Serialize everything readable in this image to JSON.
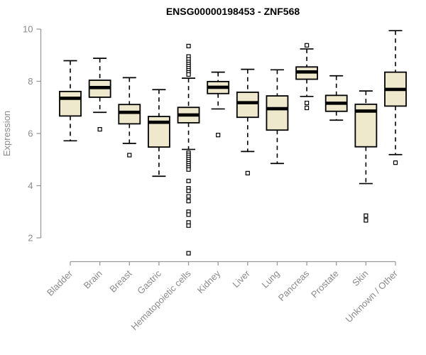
{
  "page": {
    "title": "ENSG00000198453 - ZNF568"
  },
  "chart_data": {
    "type": "boxplot",
    "title": "ENSG00000198453 - ZNF568",
    "xlabel": "",
    "ylabel": "Expression",
    "ylim": [
      2,
      10
    ],
    "yticks": [
      2,
      4,
      6,
      8,
      10
    ],
    "grid": false,
    "legend": false,
    "categories": [
      "Bladder",
      "Brain",
      "Breast",
      "Gastric",
      "Hematopoietic cells",
      "Kidney",
      "Liver",
      "Lung",
      "Pancreas",
      "Prostate",
      "Skin",
      "Unknown / Other"
    ],
    "boxes": [
      {
        "category": "Bladder",
        "whisker_low": 5.72,
        "q1": 6.67,
        "median": 7.35,
        "q3": 7.61,
        "whisker_high": 8.79,
        "outliers": []
      },
      {
        "category": "Brain",
        "whisker_low": 6.81,
        "q1": 7.39,
        "median": 7.76,
        "q3": 8.04,
        "whisker_high": 8.88,
        "outliers": [
          6.16
        ]
      },
      {
        "category": "Breast",
        "whisker_low": 5.62,
        "q1": 6.37,
        "median": 6.81,
        "q3": 7.11,
        "whisker_high": 8.14,
        "outliers": [
          5.17
        ]
      },
      {
        "category": "Gastric",
        "whisker_low": 4.36,
        "q1": 5.48,
        "median": 6.43,
        "q3": 6.65,
        "whisker_high": 7.68,
        "outliers": []
      },
      {
        "category": "Hematopoietic cells",
        "whisker_low": 5.39,
        "q1": 6.41,
        "median": 6.71,
        "q3": 7.0,
        "whisker_high": 8.12,
        "outliers": [
          9.35,
          8.95,
          8.84,
          8.74,
          8.66,
          8.58,
          8.5,
          8.42,
          8.34,
          8.26,
          5.26,
          5.18,
          5.1,
          5.02,
          4.94,
          4.86,
          4.78,
          4.7,
          4.62,
          4.18,
          3.9,
          3.8,
          3.59,
          3.41,
          3.0,
          2.89,
          2.59,
          2.47,
          1.41
        ]
      },
      {
        "category": "Kidney",
        "whisker_low": 6.94,
        "q1": 7.53,
        "median": 7.77,
        "q3": 7.99,
        "whisker_high": 8.35,
        "outliers": [
          5.94
        ]
      },
      {
        "category": "Liver",
        "whisker_low": 5.31,
        "q1": 6.62,
        "median": 7.18,
        "q3": 7.58,
        "whisker_high": 8.46,
        "outliers": [
          4.48
        ]
      },
      {
        "category": "Lung",
        "whisker_low": 4.85,
        "q1": 6.13,
        "median": 6.95,
        "q3": 7.44,
        "whisker_high": 8.44,
        "outliers": []
      },
      {
        "category": "Pancreas",
        "whisker_low": 7.42,
        "q1": 8.08,
        "median": 8.36,
        "q3": 8.55,
        "whisker_high": 9.24,
        "outliers": [
          9.38,
          7.17,
          6.98
        ]
      },
      {
        "category": "Prostate",
        "whisker_low": 6.51,
        "q1": 6.85,
        "median": 7.16,
        "q3": 7.46,
        "whisker_high": 8.21,
        "outliers": []
      },
      {
        "category": "Skin",
        "whisker_low": 4.08,
        "q1": 5.49,
        "median": 6.86,
        "q3": 7.12,
        "whisker_high": 7.63,
        "outliers": [
          2.85,
          2.67
        ]
      },
      {
        "category": "Unknown / Other",
        "whisker_low": 5.19,
        "q1": 7.05,
        "median": 7.69,
        "q3": 8.35,
        "whisker_high": 9.94,
        "outliers": [
          4.88
        ]
      }
    ],
    "colors": {
      "box_fill": "#EEE8CD",
      "box_border": "#000000",
      "median": "#000000",
      "whisker": "#000000",
      "outlier_fill": "#ffffff",
      "axis_line": "#9a9a9a",
      "tick_label": "#8a8a8a",
      "title": "#000000",
      "background": "#ffffff"
    }
  }
}
